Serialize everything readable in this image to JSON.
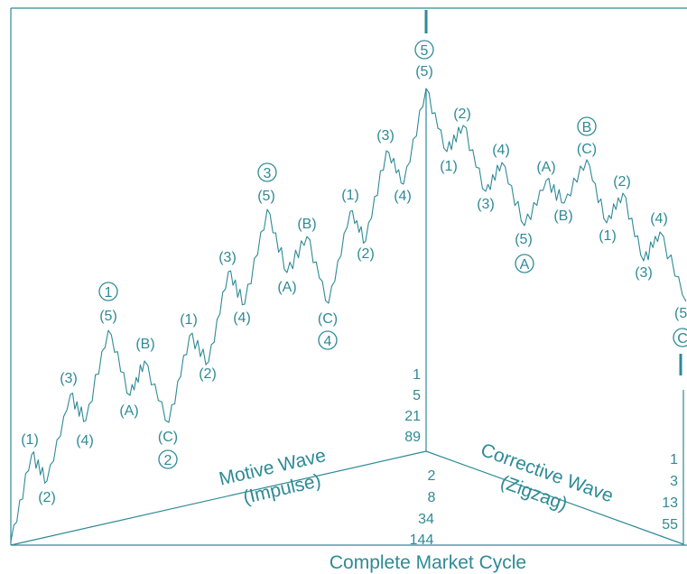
{
  "colors": {
    "line": "#2e8a96",
    "text": "#2e8a96",
    "background": "#ffffff"
  },
  "impulse_labels": {
    "w1_1": "(1)",
    "w1_2": "(2)",
    "w1_3": "(3)",
    "w1_4": "(4)",
    "w1_5": "(5)",
    "w2_a": "(A)",
    "w2_b": "(B)",
    "w2_c": "(C)",
    "w3_1": "(1)",
    "w3_2": "(2)",
    "w3_3": "(3)",
    "w3_4": "(4)",
    "w3_5": "(5)",
    "w4_a": "(A)",
    "w4_b": "(B)",
    "w4_c": "(C)",
    "w5_1": "(1)",
    "w5_2": "(2)",
    "w5_3": "(3)",
    "w5_4": "(4)",
    "w5_5": "(5)"
  },
  "corrective_labels": {
    "wa_1": "(1)",
    "wa_2": "(2)",
    "wa_3": "(3)",
    "wa_4": "(4)",
    "wa_5": "(5)",
    "wb_a": "(A)",
    "wb_b": "(B)",
    "wb_c": "(C)",
    "wc_1": "(1)",
    "wc_2": "(2)",
    "wc_3": "(3)",
    "wc_4": "(4)",
    "wc_5": "(5"
  },
  "circled_labels": {
    "c1": "1",
    "c2": "2",
    "c3": "3",
    "c4": "4",
    "c5": "5",
    "ca": "A",
    "cb": "B",
    "cc": "C"
  },
  "counts": {
    "upper_center": [
      "1",
      "5",
      "21",
      "89"
    ],
    "lower_center": [
      "2",
      "8",
      "34",
      "144"
    ],
    "right": [
      "1",
      "3",
      "13",
      "55"
    ]
  },
  "captions": {
    "motive_line1": "Motive Wave",
    "motive_line2": "(Impulse)",
    "corrective_line1": "Corrective Wave",
    "corrective_line2": "(Zigzag)",
    "cycle": "Complete Market Cycle"
  }
}
